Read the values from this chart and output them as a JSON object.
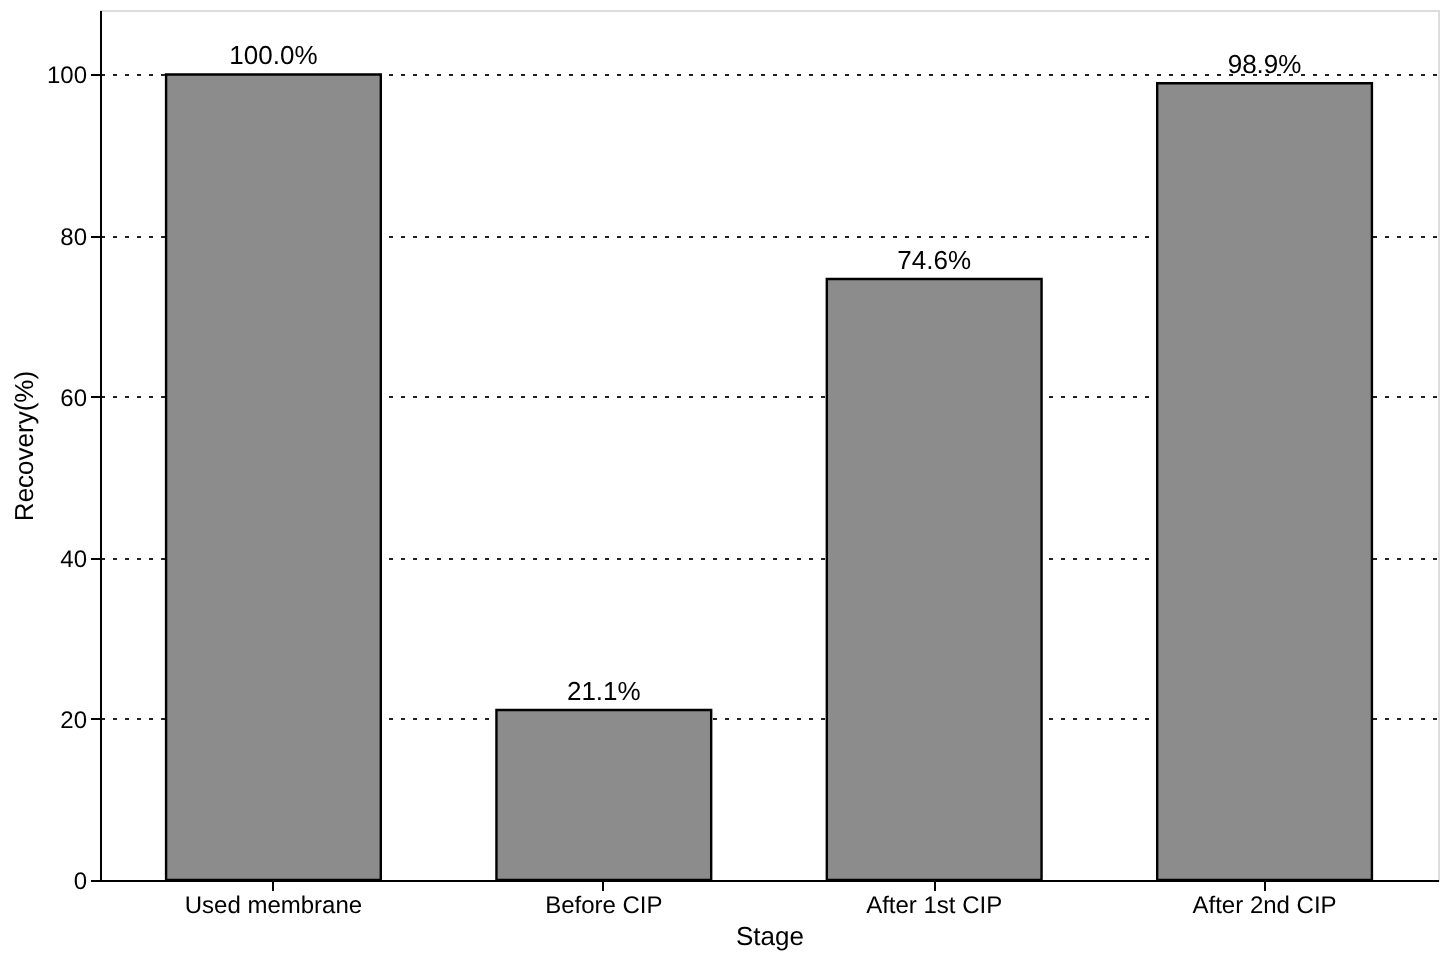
{
  "chart_data": {
    "type": "bar",
    "xlabel": "Stage",
    "ylabel": "Recovery(%)",
    "categories": [
      "Used membrane",
      "Before CIP",
      "After 1st CIP",
      "After 2nd CIP"
    ],
    "values": [
      100.0,
      21.1,
      74.6,
      98.9
    ],
    "value_labels": [
      "100.0%",
      "21.1%",
      "74.6%",
      "98.9%"
    ],
    "color": "#8c8c8c",
    "ylim": [
      0,
      108
    ],
    "yticks": [
      0,
      20,
      40,
      60,
      80,
      100
    ],
    "grid": "y"
  }
}
